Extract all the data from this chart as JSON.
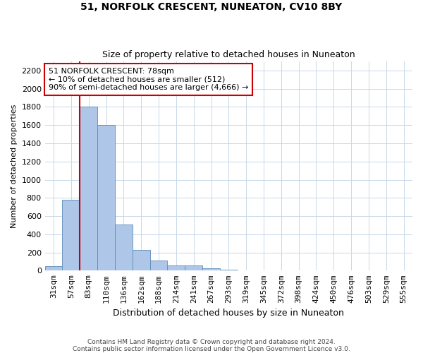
{
  "title": "51, NORFOLK CRESCENT, NUNEATON, CV10 8BY",
  "subtitle": "Size of property relative to detached houses in Nuneaton",
  "xlabel": "Distribution of detached houses by size in Nuneaton",
  "ylabel": "Number of detached properties",
  "footer_line1": "Contains HM Land Registry data © Crown copyright and database right 2024.",
  "footer_line2": "Contains public sector information licensed under the Open Government Licence v3.0.",
  "bin_labels": [
    "31sqm",
    "57sqm",
    "83sqm",
    "110sqm",
    "136sqm",
    "162sqm",
    "188sqm",
    "214sqm",
    "241sqm",
    "267sqm",
    "293sqm",
    "319sqm",
    "345sqm",
    "372sqm",
    "398sqm",
    "424sqm",
    "450sqm",
    "476sqm",
    "503sqm",
    "529sqm",
    "555sqm"
  ],
  "bar_values": [
    50,
    775,
    1800,
    1600,
    510,
    225,
    110,
    55,
    55,
    25,
    10,
    0,
    0,
    0,
    0,
    0,
    0,
    0,
    0,
    0,
    0
  ],
  "bar_color": "#aec6e8",
  "bar_edge_color": "#5b8db8",
  "red_line_x": 1.5,
  "red_line_color": "#cc0000",
  "ylim": [
    0,
    2300
  ],
  "yticks": [
    0,
    200,
    400,
    600,
    800,
    1000,
    1200,
    1400,
    1600,
    1800,
    2000,
    2200
  ],
  "annotation_text": "51 NORFOLK CRESCENT: 78sqm\n← 10% of detached houses are smaller (512)\n90% of semi-detached houses are larger (4,666) →",
  "annotation_box_color": "#ffffff",
  "annotation_box_edge_color": "#cc0000",
  "background_color": "#ffffff",
  "grid_color": "#c8d8e8"
}
